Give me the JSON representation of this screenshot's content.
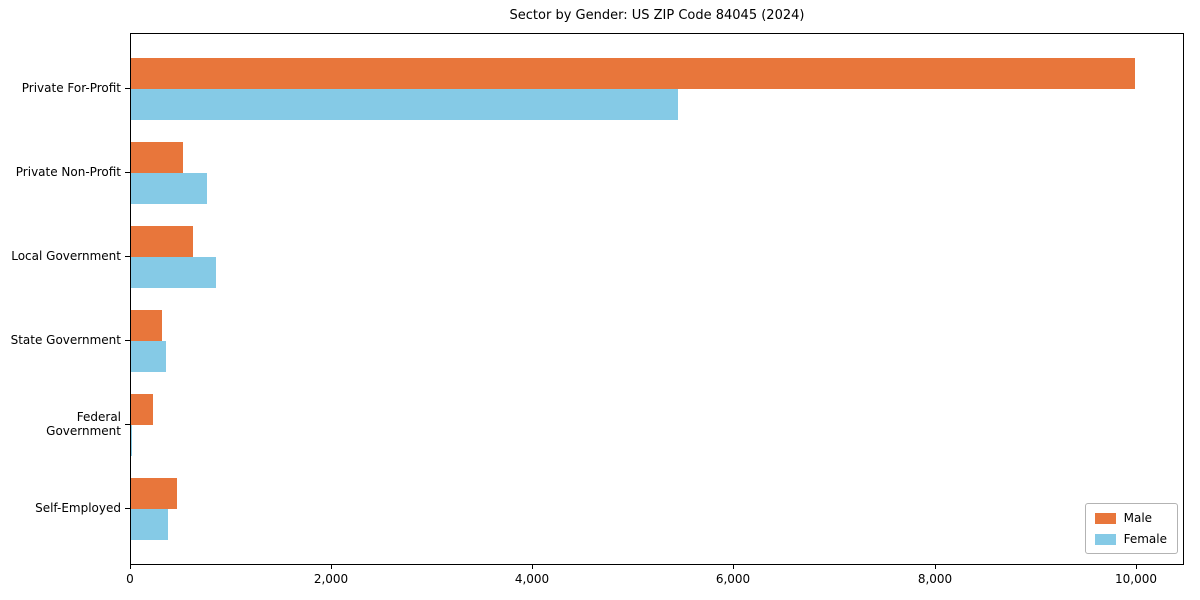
{
  "chart_data": {
    "type": "bar",
    "orientation": "horizontal",
    "title": "Sector by Gender: US ZIP Code 84045 (2024)",
    "xlabel": "",
    "ylabel": "",
    "grid": false,
    "categories": [
      "Private For-Profit",
      "Private Non-Profit",
      "Local Government",
      "State Government",
      "Federal Government",
      "Self-Employed"
    ],
    "series": [
      {
        "name": "Male",
        "color": "#e8763b",
        "values": [
          10000,
          520,
          620,
          305,
          215,
          455
        ]
      },
      {
        "name": "Female",
        "color": "#85cae6",
        "values": [
          5450,
          760,
          850,
          345,
          12,
          370
        ]
      }
    ],
    "xlim": [
      0,
      10480
    ],
    "xticks": [
      {
        "value": 0,
        "label": "0"
      },
      {
        "value": 2000,
        "label": "2,000"
      },
      {
        "value": 4000,
        "label": "4,000"
      },
      {
        "value": 6000,
        "label": "6,000"
      },
      {
        "value": 8000,
        "label": "8,000"
      },
      {
        "value": 10000,
        "label": "10,000"
      }
    ],
    "legend": {
      "position": "lower right",
      "entries": [
        "Male",
        "Female"
      ]
    }
  },
  "colors": {
    "background": "#ffffff",
    "axis": "#000000",
    "text": "#000000",
    "legend_border": "#b3b3b3"
  }
}
